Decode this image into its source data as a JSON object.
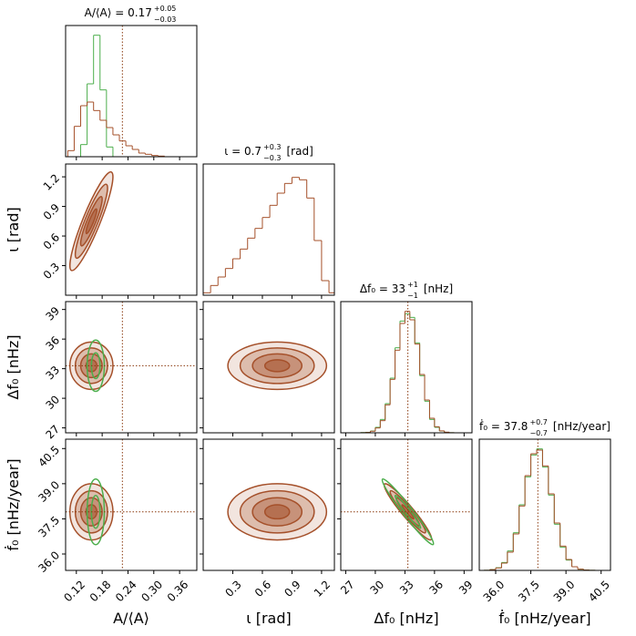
{
  "chart_data": {
    "type": "corner",
    "hist_ylim": [
      0,
      1.08
    ],
    "levels": [
      0.5,
      1,
      1.5,
      2
    ],
    "green_levels": [
      1,
      2
    ],
    "colors": {
      "main": "#a5502a",
      "green": "#4cae4c",
      "truth": "#8b3a0f"
    },
    "params": [
      {
        "label": "A/⟨A⟩",
        "title": {
          "main": "A/⟨A⟩ = 0.17",
          "plus": "+0.05",
          "minus": "−0.03"
        },
        "lim": [
          0.095,
          0.4
        ],
        "ticks": [
          0.12,
          0.18,
          0.24,
          {
            "value": 0.3,
            "label": "0.30"
          },
          0.36
        ],
        "truth": 0.227,
        "bins": [
          0.1,
          0.115,
          0.13,
          0.145,
          0.16,
          0.175,
          0.19,
          0.205,
          0.22,
          0.235,
          0.25,
          0.265,
          0.28,
          0.295,
          0.31,
          0.325,
          0.34,
          0.355,
          0.37,
          0.385,
          0.4
        ],
        "counts": [
          0.05,
          0.25,
          0.42,
          0.45,
          0.38,
          0.3,
          0.24,
          0.18,
          0.13,
          0.09,
          0.06,
          0.03,
          0.02,
          0.01,
          0.005,
          0,
          0,
          0,
          0,
          0
        ],
        "green_counts": [
          0,
          0,
          0.1,
          0.6,
          1.0,
          0.55,
          0.08,
          0,
          0,
          0,
          0,
          0,
          0,
          0,
          0,
          0,
          0,
          0,
          0,
          0
        ],
        "center": 0.155,
        "sigma": 0.025,
        "green_center": 0.165,
        "green_sigma": 0.01
      },
      {
        "label": "ι   [rad]",
        "title": {
          "main": "ι    = 0.7",
          "plus": "+0.3",
          "minus": "−0.3",
          "unit": "[rad]"
        },
        "lim": [
          0,
          1.33
        ],
        "ticks": [
          0.3,
          0.6,
          0.9,
          1.2
        ],
        "truth": null,
        "bins": [
          0,
          0.075,
          0.15,
          0.225,
          0.3,
          0.375,
          0.45,
          0.525,
          0.6,
          0.675,
          0.75,
          0.825,
          0.9,
          0.975,
          1.05,
          1.125,
          1.2,
          1.275,
          1.35
        ],
        "counts": [
          0.02,
          0.08,
          0.15,
          0.22,
          0.3,
          0.38,
          0.47,
          0.55,
          0.64,
          0.74,
          0.84,
          0.92,
          0.97,
          0.95,
          0.8,
          0.45,
          0.12,
          0.02
        ],
        "center": 0.75,
        "sigma": 0.25
      },
      {
        "label": "Δf₀   [nHz]",
        "title": {
          "main": "Δf₀    = 33",
          "plus": "+1",
          "minus": "−1",
          "unit": "[nHz]"
        },
        "lim": [
          26.5,
          39.8
        ],
        "ticks": [
          27,
          30,
          33,
          36,
          39
        ],
        "truth": 33.3,
        "bins": [
          27,
          27.5,
          28,
          28.5,
          29,
          29.5,
          30,
          30.5,
          31,
          31.5,
          32,
          32.5,
          33,
          33.5,
          34,
          34.5,
          35,
          35.5,
          36,
          36.5,
          37,
          37.5,
          38,
          38.5,
          39,
          39.5
        ],
        "counts": [
          0,
          0,
          0,
          0.001,
          0.003,
          0.013,
          0.04,
          0.1,
          0.23,
          0.44,
          0.68,
          0.9,
          1.0,
          0.93,
          0.73,
          0.48,
          0.27,
          0.12,
          0.05,
          0.016,
          0.005,
          0.001,
          0,
          0,
          0
        ],
        "green_counts": [
          0,
          0,
          0,
          0.002,
          0.004,
          0.015,
          0.045,
          0.11,
          0.24,
          0.45,
          0.7,
          0.92,
          0.98,
          0.95,
          0.74,
          0.47,
          0.26,
          0.11,
          0.045,
          0.015,
          0.004,
          0.001,
          0,
          0,
          0
        ],
        "center": 33.3,
        "sigma": 1.2,
        "green_center": 33.3,
        "green_sigma": 1.3
      },
      {
        "label": "ḟ₀   [nHz/year]",
        "title": {
          "main": "ḟ₀    = 37.8",
          "plus": "+0.7",
          "minus": "−0.7",
          "unit": "[nHz/year]"
        },
        "lim": [
          35.3,
          40.9
        ],
        "ticks": [
          {
            "value": 36,
            "label": "36.0"
          },
          37.5,
          {
            "value": 39,
            "label": "39.0"
          },
          40.5
        ],
        "truth": 37.8,
        "bins": [
          35.5,
          35.75,
          36,
          36.25,
          36.5,
          36.75,
          37,
          37.25,
          37.5,
          37.75,
          38,
          38.25,
          38.5,
          38.75,
          39,
          39.25,
          39.5,
          39.75,
          40,
          40.25,
          40.5,
          40.75
        ],
        "counts": [
          0.001,
          0.006,
          0.02,
          0.06,
          0.15,
          0.3,
          0.53,
          0.78,
          0.96,
          0.99,
          0.86,
          0.63,
          0.39,
          0.2,
          0.09,
          0.03,
          0.01,
          0.003,
          0.001,
          0,
          0
        ],
        "green_counts": [
          0.001,
          0.007,
          0.022,
          0.065,
          0.16,
          0.31,
          0.54,
          0.77,
          0.95,
          1.0,
          0.85,
          0.62,
          0.38,
          0.19,
          0.085,
          0.03,
          0.01,
          0.003,
          0.001,
          0,
          0
        ],
        "center": 37.8,
        "sigma": 0.6,
        "green_center": 37.8,
        "green_sigma": 0.7
      }
    ],
    "correlations": [
      {
        "pair": [
          0,
          1
        ],
        "corr": 0.9
      },
      {
        "pair": [
          2,
          3
        ],
        "corr": -0.95,
        "green_corr": -0.97
      }
    ]
  }
}
